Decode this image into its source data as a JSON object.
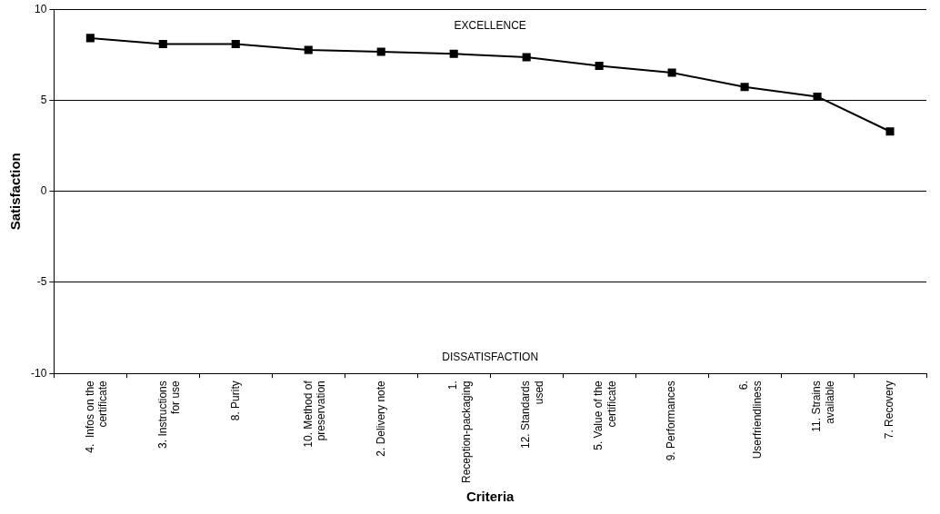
{
  "chart_data": {
    "type": "line",
    "xlabel": "Criteria",
    "ylabel": "Satisfaction",
    "categories": [
      "4.  Infos on the certificate",
      "3. Instructions for use",
      "8. Purity",
      "10. Method of preservation",
      "2. Delivery note",
      "1. Reception-packaging",
      "12. Standards used",
      "5. Value of the certificate",
      "9. Performances",
      "6. Userfriendliness",
      "11. Strains available",
      "7. Recovery"
    ],
    "values": [
      8.42,
      8.09,
      8.09,
      7.77,
      7.67,
      7.55,
      7.37,
      6.89,
      6.52,
      5.73,
      5.2,
      3.29
    ],
    "color": "#000000",
    "marker": "square",
    "line_style": "solid",
    "ylim": [
      -10,
      10
    ],
    "yticks": [
      -10,
      -5,
      0,
      5,
      10
    ],
    "grid": "y",
    "legend": false,
    "annotations": [
      "EXCELLENCE",
      "DISSATISFACTION"
    ]
  }
}
